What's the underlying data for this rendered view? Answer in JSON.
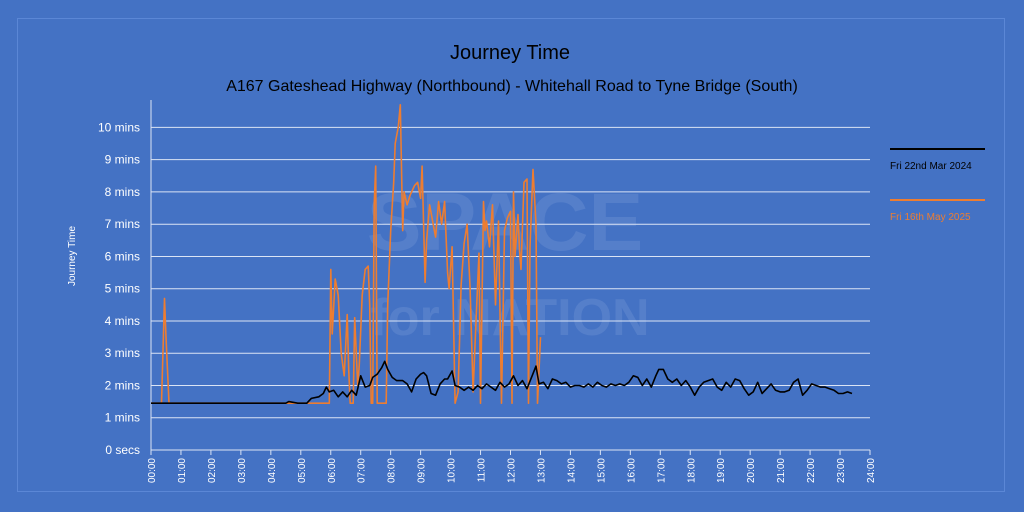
{
  "chart_data": {
    "type": "line",
    "title": "Journey Time",
    "subtitle": "A167 Gateshead Highway (Northbound) - Whitehall Road to Tyne Bridge (South)",
    "ylabel": "Journey Time",
    "xlabel": "",
    "ylim": [
      0,
      10.85
    ],
    "xlim": [
      0,
      24
    ],
    "y_ticks": [
      {
        "v": 0,
        "label": "0 secs"
      },
      {
        "v": 1,
        "label": "1 mins"
      },
      {
        "v": 2,
        "label": "2 mins"
      },
      {
        "v": 3,
        "label": "3 mins"
      },
      {
        "v": 4,
        "label": "4 mins"
      },
      {
        "v": 5,
        "label": "5 mins"
      },
      {
        "v": 6,
        "label": "6 mins"
      },
      {
        "v": 7,
        "label": "7 mins"
      },
      {
        "v": 8,
        "label": "8 mins"
      },
      {
        "v": 9,
        "label": "9 mins"
      },
      {
        "v": 10,
        "label": "10 mins"
      }
    ],
    "x_ticks": [
      {
        "v": 0,
        "label": "00:00"
      },
      {
        "v": 1,
        "label": "01:00"
      },
      {
        "v": 2,
        "label": "02:00"
      },
      {
        "v": 3,
        "label": "03:00"
      },
      {
        "v": 4,
        "label": "04:00"
      },
      {
        "v": 5,
        "label": "05:00"
      },
      {
        "v": 6,
        "label": "06:00"
      },
      {
        "v": 7,
        "label": "07:00"
      },
      {
        "v": 8,
        "label": "08:00"
      },
      {
        "v": 9,
        "label": "09:00"
      },
      {
        "v": 10,
        "label": "10:00"
      },
      {
        "v": 11,
        "label": "11:00"
      },
      {
        "v": 12,
        "label": "12:00"
      },
      {
        "v": 13,
        "label": "13:00"
      },
      {
        "v": 14,
        "label": "14:00"
      },
      {
        "v": 15,
        "label": "15:00"
      },
      {
        "v": 16,
        "label": "16:00"
      },
      {
        "v": 17,
        "label": "17:00"
      },
      {
        "v": 18,
        "label": "18:00"
      },
      {
        "v": 19,
        "label": "19:00"
      },
      {
        "v": 20,
        "label": "20:00"
      },
      {
        "v": 21,
        "label": "21:00"
      },
      {
        "v": 22,
        "label": "22:00"
      },
      {
        "v": 23,
        "label": "23:00"
      },
      {
        "v": 24,
        "label": "24:00"
      }
    ],
    "grid": true,
    "legend_position": "right",
    "watermark_lines": [
      "SPACE",
      "for",
      "NATION"
    ],
    "series": [
      {
        "name": "Fri 22nd Mar 2024",
        "color": "#000000",
        "points": [
          [
            0,
            1.45
          ],
          [
            4.5,
            1.45
          ],
          [
            4.6,
            1.5
          ],
          [
            4.9,
            1.45
          ],
          [
            5.2,
            1.45
          ],
          [
            5.35,
            1.6
          ],
          [
            5.6,
            1.65
          ],
          [
            5.75,
            1.75
          ],
          [
            5.85,
            1.95
          ],
          [
            5.95,
            1.8
          ],
          [
            6.1,
            1.85
          ],
          [
            6.25,
            1.65
          ],
          [
            6.4,
            1.8
          ],
          [
            6.55,
            1.65
          ],
          [
            6.7,
            1.85
          ],
          [
            6.85,
            1.7
          ],
          [
            7.0,
            2.3
          ],
          [
            7.15,
            1.95
          ],
          [
            7.3,
            2.0
          ],
          [
            7.4,
            2.25
          ],
          [
            7.55,
            2.35
          ],
          [
            7.7,
            2.55
          ],
          [
            7.8,
            2.75
          ],
          [
            7.9,
            2.5
          ],
          [
            8.05,
            2.25
          ],
          [
            8.2,
            2.15
          ],
          [
            8.4,
            2.15
          ],
          [
            8.55,
            2.05
          ],
          [
            8.7,
            1.8
          ],
          [
            8.85,
            2.2
          ],
          [
            9.0,
            2.35
          ],
          [
            9.1,
            2.4
          ],
          [
            9.2,
            2.3
          ],
          [
            9.35,
            1.75
          ],
          [
            9.5,
            1.7
          ],
          [
            9.65,
            2.05
          ],
          [
            9.8,
            2.2
          ],
          [
            9.9,
            2.2
          ],
          [
            10.05,
            2.45
          ],
          [
            10.15,
            2.0
          ],
          [
            10.3,
            1.95
          ],
          [
            10.45,
            1.85
          ],
          [
            10.6,
            1.95
          ],
          [
            10.75,
            1.85
          ],
          [
            10.9,
            2.0
          ],
          [
            11.05,
            1.9
          ],
          [
            11.2,
            2.05
          ],
          [
            11.35,
            1.95
          ],
          [
            11.5,
            1.85
          ],
          [
            11.65,
            2.1
          ],
          [
            11.8,
            1.95
          ],
          [
            11.95,
            2.05
          ],
          [
            12.1,
            2.3
          ],
          [
            12.25,
            2.0
          ],
          [
            12.4,
            2.15
          ],
          [
            12.55,
            1.9
          ],
          [
            12.7,
            2.25
          ],
          [
            12.85,
            2.6
          ],
          [
            12.95,
            2.05
          ],
          [
            13.1,
            2.1
          ],
          [
            13.25,
            1.9
          ],
          [
            13.4,
            2.2
          ],
          [
            13.55,
            2.15
          ],
          [
            13.7,
            2.05
          ],
          [
            13.85,
            2.1
          ],
          [
            14.0,
            1.95
          ],
          [
            14.15,
            2.0
          ],
          [
            14.3,
            2.0
          ],
          [
            14.45,
            1.95
          ],
          [
            14.6,
            2.05
          ],
          [
            14.75,
            1.95
          ],
          [
            14.9,
            2.1
          ],
          [
            15.05,
            2.0
          ],
          [
            15.2,
            1.95
          ],
          [
            15.35,
            2.05
          ],
          [
            15.5,
            2.0
          ],
          [
            15.65,
            2.05
          ],
          [
            15.8,
            2.0
          ],
          [
            15.95,
            2.1
          ],
          [
            16.1,
            2.3
          ],
          [
            16.25,
            2.25
          ],
          [
            16.4,
            2.0
          ],
          [
            16.55,
            2.2
          ],
          [
            16.7,
            1.95
          ],
          [
            16.85,
            2.3
          ],
          [
            16.95,
            2.5
          ],
          [
            17.1,
            2.5
          ],
          [
            17.25,
            2.2
          ],
          [
            17.4,
            2.1
          ],
          [
            17.55,
            2.2
          ],
          [
            17.7,
            2.0
          ],
          [
            17.85,
            2.15
          ],
          [
            18.0,
            1.95
          ],
          [
            18.15,
            1.7
          ],
          [
            18.3,
            1.95
          ],
          [
            18.45,
            2.1
          ],
          [
            18.6,
            2.15
          ],
          [
            18.75,
            2.2
          ],
          [
            18.9,
            1.95
          ],
          [
            19.05,
            1.85
          ],
          [
            19.2,
            2.1
          ],
          [
            19.35,
            1.95
          ],
          [
            19.5,
            2.2
          ],
          [
            19.65,
            2.15
          ],
          [
            19.8,
            1.9
          ],
          [
            19.95,
            1.7
          ],
          [
            20.1,
            1.8
          ],
          [
            20.25,
            2.1
          ],
          [
            20.4,
            1.75
          ],
          [
            20.55,
            1.9
          ],
          [
            20.7,
            2.05
          ],
          [
            20.85,
            1.85
          ],
          [
            21.0,
            1.8
          ],
          [
            21.15,
            1.8
          ],
          [
            21.3,
            1.85
          ],
          [
            21.45,
            2.1
          ],
          [
            21.6,
            2.2
          ],
          [
            21.75,
            1.7
          ],
          [
            21.9,
            1.85
          ],
          [
            22.05,
            2.05
          ],
          [
            22.2,
            2.0
          ],
          [
            22.35,
            1.95
          ],
          [
            22.5,
            1.95
          ],
          [
            22.65,
            1.9
          ],
          [
            22.8,
            1.85
          ],
          [
            22.95,
            1.75
          ],
          [
            23.1,
            1.75
          ],
          [
            23.25,
            1.8
          ],
          [
            23.4,
            1.75
          ]
        ]
      },
      {
        "name": "Fri 16th May 2025",
        "color": "#ed7d31",
        "points": [
          [
            0,
            1.45
          ],
          [
            0.35,
            1.45
          ],
          [
            0.45,
            4.7
          ],
          [
            0.5,
            3.5
          ],
          [
            0.6,
            1.45
          ],
          [
            0.75,
            1.45
          ],
          [
            5.5,
            1.45
          ],
          [
            5.95,
            1.45
          ],
          [
            6.0,
            5.6
          ],
          [
            6.05,
            3.6
          ],
          [
            6.15,
            5.3
          ],
          [
            6.25,
            4.8
          ],
          [
            6.35,
            3.0
          ],
          [
            6.45,
            2.3
          ],
          [
            6.55,
            4.2
          ],
          [
            6.6,
            2.5
          ],
          [
            6.65,
            1.45
          ],
          [
            6.75,
            1.45
          ],
          [
            6.8,
            4.1
          ],
          [
            6.9,
            2.0
          ],
          [
            6.95,
            2.6
          ],
          [
            7.05,
            4.8
          ],
          [
            7.15,
            5.6
          ],
          [
            7.25,
            5.7
          ],
          [
            7.3,
            4.5
          ],
          [
            7.35,
            1.45
          ],
          [
            7.4,
            1.45
          ],
          [
            7.45,
            7.6
          ],
          [
            7.5,
            8.8
          ],
          [
            7.55,
            1.45
          ],
          [
            7.85,
            1.45
          ],
          [
            7.9,
            4.5
          ],
          [
            8.0,
            6.8
          ],
          [
            8.1,
            8.3
          ],
          [
            8.15,
            9.5
          ],
          [
            8.25,
            10.0
          ],
          [
            8.32,
            10.7
          ],
          [
            8.4,
            6.8
          ],
          [
            8.45,
            8.0
          ],
          [
            8.55,
            7.6
          ],
          [
            8.65,
            7.9
          ],
          [
            8.8,
            8.2
          ],
          [
            8.9,
            8.3
          ],
          [
            9.0,
            7.8
          ],
          [
            9.05,
            8.8
          ],
          [
            9.15,
            5.2
          ],
          [
            9.2,
            6.5
          ],
          [
            9.3,
            7.6
          ],
          [
            9.4,
            7.1
          ],
          [
            9.5,
            6.6
          ],
          [
            9.6,
            7.7
          ],
          [
            9.7,
            7.0
          ],
          [
            9.8,
            7.7
          ],
          [
            9.9,
            5.5
          ],
          [
            9.95,
            5.0
          ],
          [
            10.05,
            6.3
          ],
          [
            10.15,
            1.45
          ],
          [
            10.25,
            1.8
          ],
          [
            10.35,
            5.1
          ],
          [
            10.45,
            6.4
          ],
          [
            10.55,
            7.0
          ],
          [
            10.65,
            5.0
          ],
          [
            10.75,
            1.8
          ],
          [
            10.85,
            4.0
          ],
          [
            10.95,
            6.1
          ],
          [
            11.0,
            1.45
          ],
          [
            11.1,
            7.7
          ],
          [
            11.15,
            6.8
          ],
          [
            11.2,
            7.1
          ],
          [
            11.3,
            6.3
          ],
          [
            11.4,
            7.6
          ],
          [
            11.5,
            4.5
          ],
          [
            11.6,
            7.1
          ],
          [
            11.7,
            1.45
          ],
          [
            11.8,
            6.8
          ],
          [
            11.9,
            7.2
          ],
          [
            12.0,
            7.4
          ],
          [
            12.05,
            1.45
          ],
          [
            12.1,
            8.0
          ],
          [
            12.15,
            6.0
          ],
          [
            12.25,
            7.3
          ],
          [
            12.3,
            6.2
          ],
          [
            12.35,
            5.6
          ],
          [
            12.45,
            8.3
          ],
          [
            12.55,
            8.4
          ],
          [
            12.6,
            1.45
          ],
          [
            12.65,
            6.3
          ],
          [
            12.75,
            8.7
          ],
          [
            12.85,
            7.0
          ],
          [
            12.9,
            1.45
          ],
          [
            13.0,
            3.5
          ]
        ]
      }
    ]
  }
}
